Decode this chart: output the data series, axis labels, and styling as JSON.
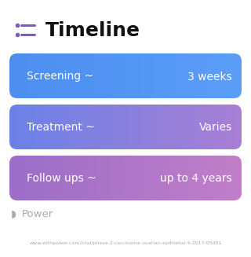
{
  "title": "Timeline",
  "title_icon_color": "#7c5cbf",
  "title_color": "#111111",
  "background_color": "#ffffff",
  "rows": [
    {
      "label": "Screening ~",
      "value": "3 weeks",
      "color_left": "#4d8ef0",
      "color_right": "#5b9ef8"
    },
    {
      "label": "Treatment ~",
      "value": "Varies",
      "color_left": "#6b82e8",
      "color_right": "#a87fd4"
    },
    {
      "label": "Follow ups ~",
      "value": "up to 4 years",
      "color_left": "#9b6ec8",
      "color_right": "#c27ec8"
    }
  ],
  "footer_logo_color": "#aaaaaa",
  "footer_text": "www.withpower.com/trial/phase-3-carcinoma-ovarian-epithelial-4-2017-05d01",
  "footer_text_color": "#aaaaaa",
  "footer_fontsize": 4.5,
  "title_fontsize": 18,
  "label_fontsize": 10,
  "value_fontsize": 10,
  "power_fontsize": 9.5
}
